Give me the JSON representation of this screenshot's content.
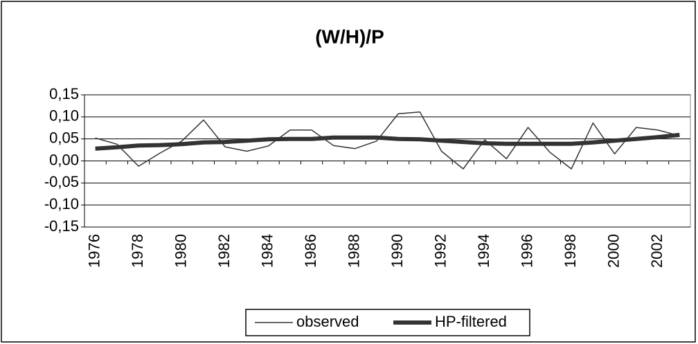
{
  "chart_data": {
    "type": "line",
    "title": "(W/H)/P",
    "categories": [
      "1976",
      null,
      "1978",
      null,
      "1980",
      null,
      "1982",
      null,
      "1984",
      null,
      "1986",
      null,
      "1988",
      null,
      "1990",
      null,
      "1992",
      null,
      "1994",
      null,
      "1996",
      null,
      "1998",
      null,
      "2000",
      null,
      "2002",
      null
    ],
    "series": [
      {
        "name": "observed",
        "color": "#333333",
        "values": [
          0.052,
          0.038,
          -0.012,
          0.018,
          0.045,
          0.093,
          0.032,
          0.022,
          0.034,
          0.07,
          0.07,
          0.035,
          0.028,
          0.045,
          0.107,
          0.111,
          0.022,
          -0.018,
          0.048,
          0.005,
          0.076,
          0.02,
          -0.018,
          0.086,
          0.016,
          0.076,
          0.07,
          0.057
        ]
      },
      {
        "name": "HP-filtered",
        "color": "#333333",
        "values": [
          0.028,
          0.031,
          0.035,
          0.036,
          0.038,
          0.042,
          0.043,
          0.046,
          0.049,
          0.05,
          0.05,
          0.053,
          0.053,
          0.053,
          0.05,
          0.049,
          0.046,
          0.043,
          0.04,
          0.039,
          0.039,
          0.039,
          0.039,
          0.042,
          0.046,
          0.05,
          0.054,
          0.059
        ]
      }
    ],
    "ylim": [
      -0.15,
      0.15
    ],
    "yticks": [
      {
        "value": 0.15,
        "label": "0,15"
      },
      {
        "value": 0.1,
        "label": "0,10"
      },
      {
        "value": 0.05,
        "label": "0,05"
      },
      {
        "value": 0,
        "label": "0,00"
      },
      {
        "value": -0.05,
        "label": "-0,05"
      },
      {
        "value": -0.1,
        "label": "-0,10"
      },
      {
        "value": -0.15,
        "label": "-0,15"
      }
    ],
    "grid": true
  }
}
